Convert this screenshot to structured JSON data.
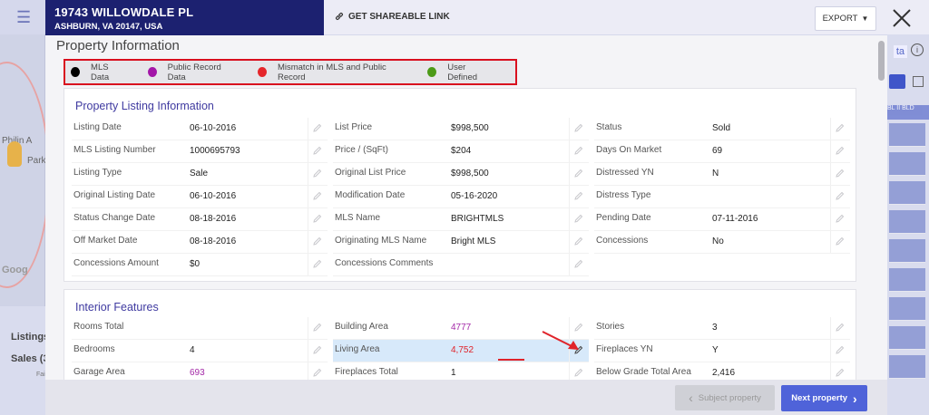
{
  "header": {
    "address_line1": "19743 WILLOWDALE PL",
    "address_line2": "ASHBURN, VA 20147, USA",
    "share_label": "GET SHAREABLE LINK",
    "export_label": "EXPORT"
  },
  "background": {
    "listings_label": "Listings",
    "sales_label": "Sales (3",
    "map_label_1": "Philin A",
    "map_label_2": "Park",
    "map_label_3": "Goog",
    "fai_label": "Fai",
    "right_tab": "ta",
    "right_header": "BL II   BLD"
  },
  "modal": {
    "title": "Property Information",
    "legend": [
      {
        "label": "MLS Data",
        "color": "#000000"
      },
      {
        "label": "Public Record Data",
        "color": "#a316a8"
      },
      {
        "label": "Mismatch in MLS and Public Record",
        "color": "#e5262b"
      },
      {
        "label": "User Defined",
        "color": "#4c9a17"
      }
    ]
  },
  "listing": {
    "title": "Property Listing Information",
    "col1": [
      {
        "label": "Listing Date",
        "value": "06-10-2016"
      },
      {
        "label": "MLS Listing Number",
        "value": "1000695793"
      },
      {
        "label": "Listing Type",
        "value": "Sale"
      },
      {
        "label": "Original Listing Date",
        "value": "06-10-2016"
      },
      {
        "label": "Status Change Date",
        "value": "08-18-2016"
      },
      {
        "label": "Off Market Date",
        "value": "08-18-2016"
      },
      {
        "label": "Concessions Amount",
        "value": "$0"
      }
    ],
    "col2": [
      {
        "label": "List Price",
        "value": "$998,500"
      },
      {
        "label": "Price / (SqFt)",
        "value": "$204"
      },
      {
        "label": "Original List Price",
        "value": "$998,500"
      },
      {
        "label": "Modification Date",
        "value": "05-16-2020"
      },
      {
        "label": "MLS Name",
        "value": "BRIGHTMLS"
      },
      {
        "label": "Originating MLS Name",
        "value": "Bright MLS"
      },
      {
        "label": "Concessions Comments",
        "value": ""
      }
    ],
    "col3": [
      {
        "label": "Status",
        "value": "Sold"
      },
      {
        "label": "Days On Market",
        "value": "69"
      },
      {
        "label": "Distressed YN",
        "value": "N"
      },
      {
        "label": "Distress Type",
        "value": ""
      },
      {
        "label": "Pending Date",
        "value": "07-11-2016"
      },
      {
        "label": "Concessions",
        "value": "No"
      }
    ]
  },
  "interior": {
    "title": "Interior Features",
    "col1": [
      {
        "label": "Rooms Total",
        "value": ""
      },
      {
        "label": "Bedrooms",
        "value": "4"
      },
      {
        "label": "Garage Area",
        "value": "693"
      }
    ],
    "col2": [
      {
        "label": "Building Area",
        "value": "4777"
      },
      {
        "label": "Living Area",
        "value": "4,752"
      },
      {
        "label": "Fireplaces Total",
        "value": "1"
      }
    ],
    "col3": [
      {
        "label": "Stories",
        "value": "3"
      },
      {
        "label": "Fireplaces YN",
        "value": "Y"
      },
      {
        "label": "Below Grade Total Area",
        "value": "2,416"
      }
    ]
  },
  "footer": {
    "prev_label": "Subject property",
    "next_label": "Next property"
  }
}
